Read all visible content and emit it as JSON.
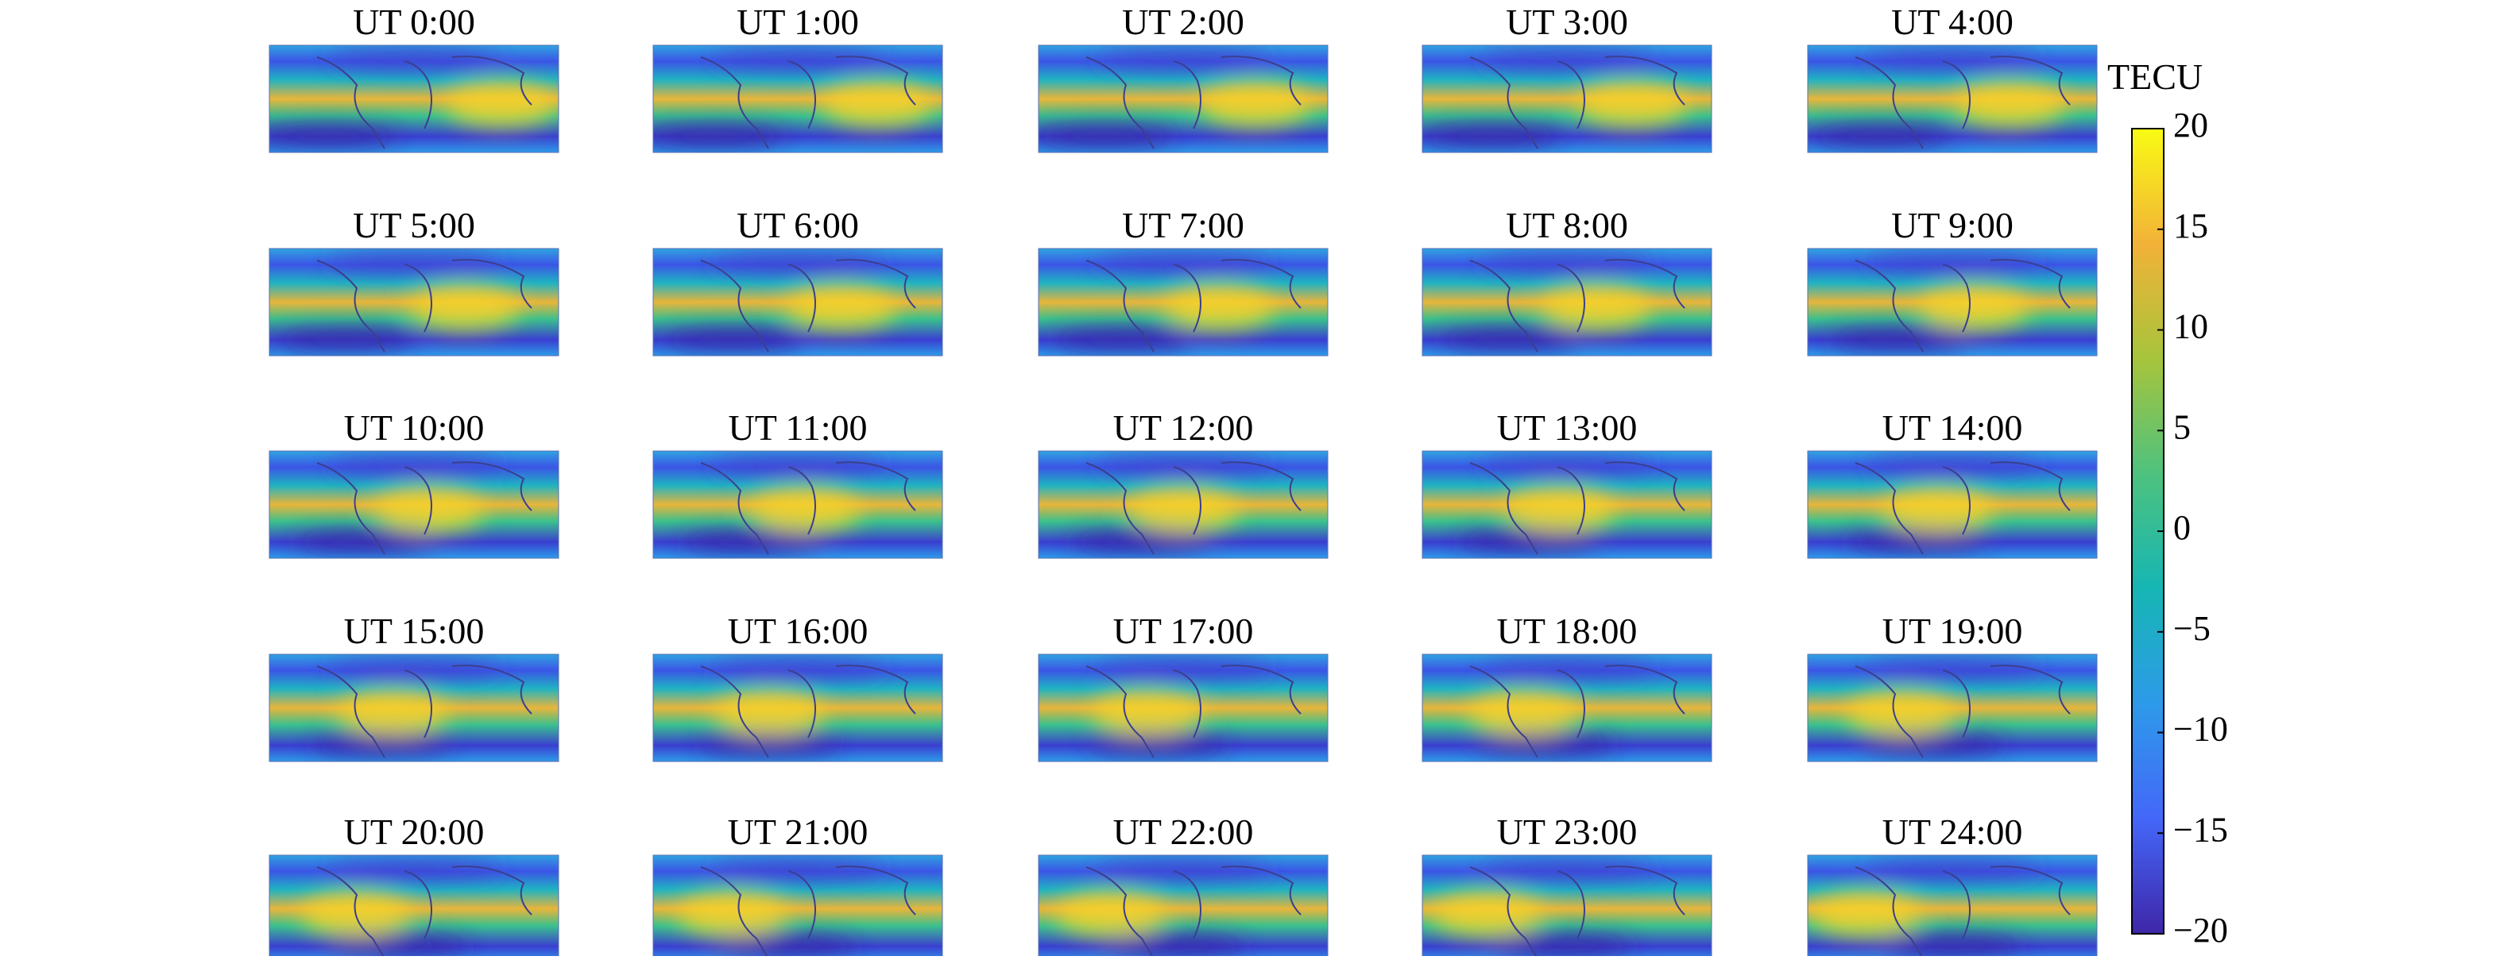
{
  "chart_data": {
    "type": "image-grid",
    "panels": [
      "UT 0:00",
      "UT 1:00",
      "UT 2:00",
      "UT 3:00",
      "UT 4:00",
      "UT 5:00",
      "UT 6:00",
      "UT 7:00",
      "UT 8:00",
      "UT 9:00",
      "UT 10:00",
      "UT 11:00",
      "UT 12:00",
      "UT 13:00",
      "UT 14:00",
      "UT 15:00",
      "UT 16:00",
      "UT 17:00",
      "UT 18:00",
      "UT 19:00",
      "UT 20:00",
      "UT 21:00",
      "UT 22:00",
      "UT 23:00",
      "UT 24:00"
    ],
    "columns": 5,
    "colorbar": {
      "label": "TECU",
      "ylim": [
        -20,
        20
      ],
      "yticks": [
        {
          "value": -20,
          "label": "−20"
        },
        {
          "value": -15,
          "label": "−15"
        },
        {
          "value": -10,
          "label": "−10"
        },
        {
          "value": -5,
          "label": "−5"
        },
        0,
        5,
        10,
        15,
        20
      ],
      "colors": [
        "#3e26a8",
        "#4467f9",
        "#2d9ae9",
        "#16b6b4",
        "#4ec27e",
        "#a7c43c",
        "#f2b238",
        "#f9fb14"
      ]
    }
  }
}
